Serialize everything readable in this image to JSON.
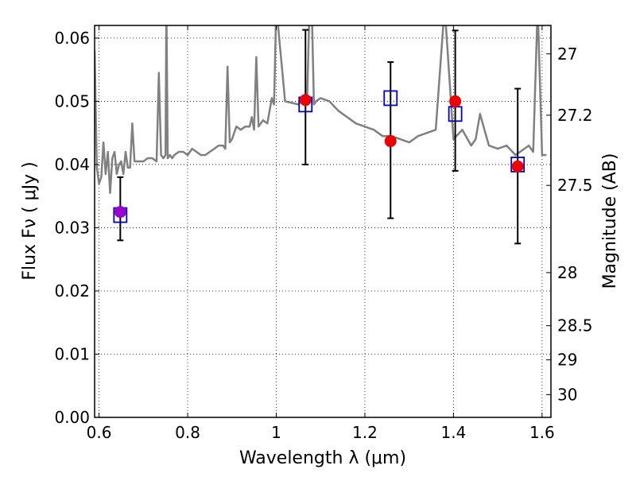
{
  "chart_data": {
    "type": "scatter",
    "xlabel": "Wavelength  λ (μm)",
    "ylabel": "Flux  Fν  ( μJy )",
    "ylabel_right": "Magnitude (AB)",
    "xlim": [
      0.59,
      1.62
    ],
    "ylim": [
      0.0,
      0.062
    ],
    "grid": true,
    "x_ticks": [
      {
        "value": 0.6,
        "label": "0.6"
      },
      {
        "value": 0.8,
        "label": "0.8"
      },
      {
        "value": 1.0,
        "label": "1"
      },
      {
        "value": 1.2,
        "label": "1.2"
      },
      {
        "value": 1.4,
        "label": "1.4"
      },
      {
        "value": 1.6,
        "label": "1.6"
      }
    ],
    "y_ticks": [
      {
        "value": 0.0,
        "label": "0.00"
      },
      {
        "value": 0.01,
        "label": "0.01"
      },
      {
        "value": 0.02,
        "label": "0.02"
      },
      {
        "value": 0.03,
        "label": "0.03"
      },
      {
        "value": 0.04,
        "label": "0.04"
      },
      {
        "value": 0.05,
        "label": "0.05"
      },
      {
        "value": 0.06,
        "label": "0.06"
      }
    ],
    "right_ticks": [
      {
        "flux": 0.0575,
        "label": "27"
      },
      {
        "flux": 0.0478,
        "label": "27.2"
      },
      {
        "flux": 0.0367,
        "label": "27.5"
      },
      {
        "flux": 0.0229,
        "label": "28"
      },
      {
        "flux": 0.0145,
        "label": "28.5"
      },
      {
        "flux": 0.0091,
        "label": "29"
      },
      {
        "flux": 0.0036,
        "label": "30"
      }
    ],
    "colors": {
      "spectrum": "#808080",
      "model": "#0000cc",
      "observed": "#ee0000",
      "observed_first": "#9900cc",
      "errorbar": "#000000"
    },
    "spectrum": {
      "name": "",
      "x": [
        0.59,
        0.595,
        0.6,
        0.605,
        0.61,
        0.615,
        0.62,
        0.625,
        0.63,
        0.635,
        0.64,
        0.645,
        0.65,
        0.655,
        0.66,
        0.665,
        0.67,
        0.675,
        0.68,
        0.69,
        0.7,
        0.71,
        0.72,
        0.73,
        0.735,
        0.74,
        0.745,
        0.75,
        0.752,
        0.755,
        0.76,
        0.765,
        0.77,
        0.78,
        0.79,
        0.8,
        0.81,
        0.82,
        0.83,
        0.84,
        0.85,
        0.86,
        0.87,
        0.88,
        0.885,
        0.89,
        0.895,
        0.9,
        0.91,
        0.92,
        0.93,
        0.94,
        0.945,
        0.95,
        0.955,
        0.96,
        0.97,
        0.98,
        0.99,
        0.995,
        1.0,
        1.02,
        1.05,
        1.07,
        1.075,
        1.08,
        1.085,
        1.09,
        1.1,
        1.12,
        1.14,
        1.16,
        1.18,
        1.2,
        1.22,
        1.24,
        1.26,
        1.28,
        1.3,
        1.32,
        1.34,
        1.36,
        1.38,
        1.4,
        1.42,
        1.44,
        1.45,
        1.46,
        1.48,
        1.5,
        1.52,
        1.54,
        1.56,
        1.57,
        1.58,
        1.59,
        1.6,
        1.61
      ],
      "y": [
        0.058,
        0.0395,
        0.037,
        0.038,
        0.0435,
        0.0385,
        0.042,
        0.0355,
        0.041,
        0.042,
        0.0385,
        0.04,
        0.0405,
        0.0385,
        0.042,
        0.0395,
        0.0395,
        0.0465,
        0.0405,
        0.0405,
        0.0405,
        0.041,
        0.041,
        0.0405,
        0.0545,
        0.0415,
        0.041,
        0.0415,
        0.065,
        0.041,
        0.0415,
        0.041,
        0.0415,
        0.042,
        0.042,
        0.0415,
        0.0425,
        0.042,
        0.0415,
        0.0415,
        0.042,
        0.0425,
        0.043,
        0.043,
        0.0425,
        0.0555,
        0.0435,
        0.044,
        0.046,
        0.0455,
        0.046,
        0.046,
        0.0475,
        0.0455,
        0.057,
        0.046,
        0.047,
        0.0465,
        0.0505,
        0.0495,
        0.065,
        0.05,
        0.0495,
        0.051,
        0.065,
        0.065,
        0.0495,
        0.05,
        0.0505,
        0.05,
        0.0485,
        0.0475,
        0.0465,
        0.046,
        0.0455,
        0.0445,
        0.0445,
        0.044,
        0.0435,
        0.0445,
        0.045,
        0.0455,
        0.065,
        0.044,
        0.0455,
        0.043,
        0.044,
        0.048,
        0.043,
        0.0425,
        0.043,
        0.0415,
        0.0425,
        0.043,
        0.042,
        0.065,
        0.0415,
        0.0415
      ]
    },
    "model_points": {
      "name": "",
      "x": [
        0.648,
        1.066,
        1.258,
        1.404,
        1.545
      ],
      "y": [
        0.032,
        0.0495,
        0.0505,
        0.048,
        0.04
      ]
    },
    "observed_points": {
      "name": "",
      "x": [
        0.648,
        1.066,
        1.258,
        1.404,
        1.545
      ],
      "y": [
        0.0325,
        0.0502,
        0.0437,
        0.05,
        0.0397
      ],
      "err_low": [
        0.028,
        0.04,
        0.0315,
        0.039,
        0.0275
      ],
      "err_high": [
        0.038,
        0.0613,
        0.0562,
        0.0612,
        0.052
      ]
    }
  }
}
